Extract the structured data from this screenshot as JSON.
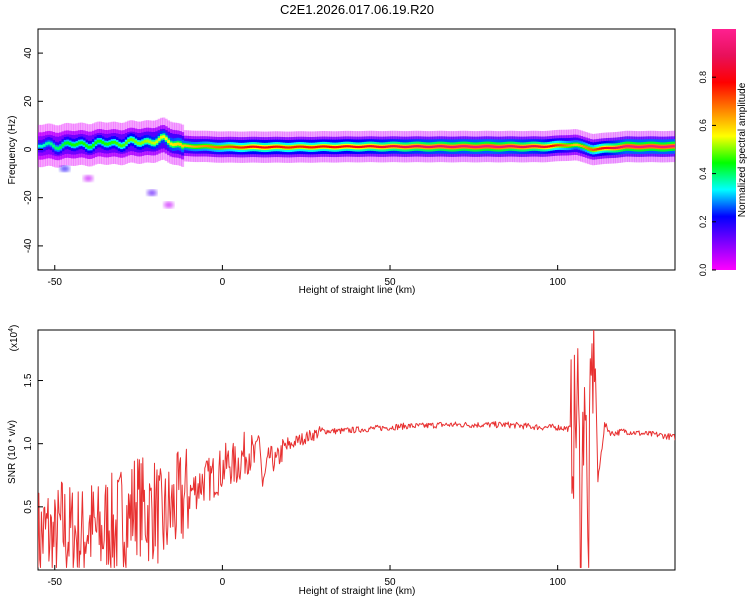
{
  "title": "C2E1.2026.017.06.19.R20",
  "chart_data": [
    {
      "type": "heatmap",
      "name": "spectrogram",
      "xlabel": "Height of straight line (km)",
      "ylabel": "Frequency (Hz)",
      "xlim": [
        -55,
        135
      ],
      "ylim": [
        -50,
        50
      ],
      "xticks": [
        -50,
        0,
        50,
        100
      ],
      "yticks": [
        -40,
        -20,
        0,
        20,
        40
      ],
      "colorbar": {
        "label": "Normalized spectral amplitude",
        "range": [
          0,
          1
        ],
        "ticks": [
          0.0,
          0.2,
          0.4,
          0.6,
          0.8
        ],
        "tick_labels": [
          "0.0",
          "0.2",
          "0.4",
          "0.6",
          "0.8"
        ],
        "colormap": [
          "#ff00ff",
          "#8000ff",
          "#0000ff",
          "#00ffff",
          "#00ff00",
          "#ffff00",
          "#ff8000",
          "#ff0000",
          "#e8105a",
          "#ff2090"
        ]
      },
      "ridge": [
        {
          "x": -55,
          "f": 1.5,
          "amp": 0.35
        },
        {
          "x": -45,
          "f": 2.0,
          "amp": 0.45
        },
        {
          "x": -35,
          "f": 2.5,
          "amp": 0.45
        },
        {
          "x": -25,
          "f": 3.0,
          "amp": 0.5
        },
        {
          "x": -18,
          "f": 4.0,
          "amp": 0.55
        },
        {
          "x": -12,
          "f": 1.5,
          "amp": 0.6
        },
        {
          "x": 0,
          "f": 1.0,
          "amp": 0.7
        },
        {
          "x": 10,
          "f": 1.0,
          "amp": 0.8
        },
        {
          "x": 20,
          "f": 1.0,
          "amp": 0.75
        },
        {
          "x": 40,
          "f": 1.2,
          "amp": 0.8
        },
        {
          "x": 60,
          "f": 1.2,
          "amp": 0.9
        },
        {
          "x": 80,
          "f": 1.2,
          "amp": 0.95
        },
        {
          "x": 95,
          "f": 1.2,
          "amp": 0.85
        },
        {
          "x": 105,
          "f": 2.0,
          "amp": 0.6
        },
        {
          "x": 110,
          "f": 0.0,
          "amp": 0.7
        },
        {
          "x": 120,
          "f": 1.2,
          "amp": 0.95
        },
        {
          "x": 135,
          "f": 1.2,
          "amp": 0.95
        }
      ],
      "spots": [
        {
          "x": -47,
          "f": -8,
          "amp": 0.2
        },
        {
          "x": -21,
          "f": -18,
          "amp": 0.15
        },
        {
          "x": -16,
          "f": -23,
          "amp": 0.05
        },
        {
          "x": -40,
          "f": -12,
          "amp": 0.05
        }
      ]
    },
    {
      "type": "line",
      "name": "snr",
      "xlabel": "Height of straight line (km)",
      "ylabel": "SNR (10 * v/v)",
      "y_multiplier": "(x10",
      "y_multiplier_exp": "4",
      "y_multiplier_close": ")",
      "xlim": [
        -55,
        135
      ],
      "ylim": [
        0.0,
        1.9
      ],
      "xticks": [
        -50,
        0,
        50,
        100
      ],
      "yticks": [
        0.5,
        1.0,
        1.5
      ],
      "color": "#e83030",
      "series": [
        {
          "name": "SNR",
          "x": [
            -55,
            -52,
            -50,
            -48,
            -46,
            -44,
            -42,
            -40,
            -38,
            -36,
            -34,
            -32,
            -30,
            -28,
            -26,
            -24,
            -22,
            -20,
            -18,
            -16,
            -14,
            -12,
            -10,
            -8,
            -6,
            -4,
            -2,
            0,
            2,
            4,
            6,
            8,
            10,
            11,
            12,
            14,
            16,
            18,
            20,
            22,
            25,
            28,
            30,
            35,
            40,
            45,
            50,
            55,
            60,
            65,
            70,
            75,
            80,
            85,
            90,
            95,
            100,
            103,
            105,
            106,
            107,
            108,
            109,
            110,
            111,
            112,
            114,
            116,
            120,
            125,
            130,
            135
          ],
          "y": [
            0.25,
            0.3,
            0.2,
            0.35,
            0.28,
            0.3,
            0.25,
            0.35,
            0.3,
            0.28,
            0.4,
            0.3,
            0.45,
            0.4,
            0.55,
            0.5,
            0.45,
            0.5,
            0.35,
            0.45,
            0.5,
            0.55,
            0.6,
            0.65,
            0.7,
            0.72,
            0.75,
            0.8,
            0.85,
            0.82,
            0.9,
            0.95,
            0.85,
            1.1,
            0.65,
            0.9,
            0.85,
            0.95,
            0.98,
            1.02,
            1.05,
            1.08,
            1.1,
            1.1,
            1.11,
            1.12,
            1.13,
            1.14,
            1.14,
            1.15,
            1.15,
            1.15,
            1.15,
            1.15,
            1.14,
            1.13,
            1.13,
            1.12,
            1.12,
            1.35,
            0.2,
            1.7,
            0.1,
            1.4,
            1.9,
            0.7,
            1.15,
            1.08,
            1.1,
            1.08,
            1.07,
            1.05
          ]
        }
      ]
    }
  ]
}
